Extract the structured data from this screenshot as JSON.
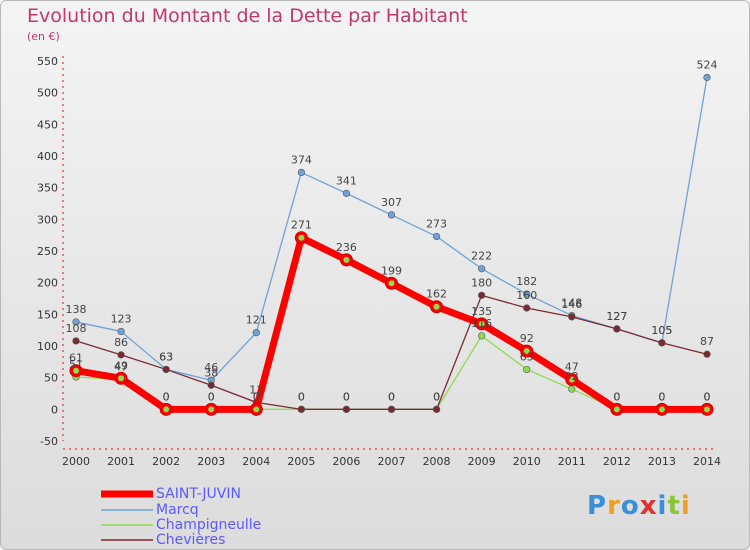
{
  "title": "Evolution du Montant de la Dette par Habitant",
  "subtitle": "(en €)",
  "logo": "Proxiti",
  "chart_data": {
    "type": "line",
    "title": "Evolution du Montant de la Dette par Habitant",
    "ylabel": "(en €)",
    "x": [
      2000,
      2001,
      2002,
      2003,
      2004,
      2005,
      2006,
      2007,
      2008,
      2009,
      2010,
      2011,
      2012,
      2013,
      2014
    ],
    "ylim": [
      -50,
      550
    ],
    "yticks": [
      -50,
      0,
      50,
      100,
      150,
      200,
      250,
      300,
      350,
      400,
      450,
      500,
      550
    ],
    "grid": false,
    "legend": "bottom-left",
    "series": [
      {
        "name": "Marcq",
        "color": "#6fa3d6",
        "values": [
          138,
          123,
          63,
          46,
          121,
          374,
          341,
          307,
          273,
          222,
          182,
          148,
          127,
          105,
          524
        ],
        "labels": [
          "138",
          "123",
          "63",
          "46",
          "121",
          "374",
          "341",
          "307",
          "273",
          "222",
          "182",
          "148",
          "127",
          "105",
          "524"
        ]
      },
      {
        "name": "Champigneulle",
        "color": "#8fdc4f",
        "values": [
          51,
          47,
          0,
          0,
          0,
          0,
          0,
          0,
          0,
          116,
          63,
          32,
          0,
          0,
          0
        ],
        "labels": [
          "51",
          "47",
          "0",
          "0",
          "0",
          "0",
          "0",
          "0",
          "0",
          "116",
          "63",
          "32",
          "0",
          "0",
          "0"
        ]
      },
      {
        "name": "Chevières",
        "color": "#7a2a33",
        "values": [
          108,
          86,
          63,
          38,
          11,
          0,
          0,
          0,
          0,
          180,
          160,
          146,
          127,
          105,
          87
        ],
        "labels": [
          "108",
          "86",
          "63",
          "38",
          "11",
          "0",
          "0",
          "0",
          "0",
          "180",
          "160",
          "146",
          "127",
          "105",
          "87"
        ]
      },
      {
        "name": "SAINT-JUVIN",
        "color": "#ff0000",
        "values": [
          61,
          49,
          0,
          0,
          0,
          271,
          236,
          199,
          162,
          135,
          92,
          47,
          0,
          0,
          0
        ],
        "labels": [
          "61",
          "49",
          "0",
          "0",
          "0",
          "271",
          "236",
          "199",
          "162",
          "135",
          "92",
          "47",
          "0",
          "0",
          "0"
        ]
      }
    ]
  }
}
